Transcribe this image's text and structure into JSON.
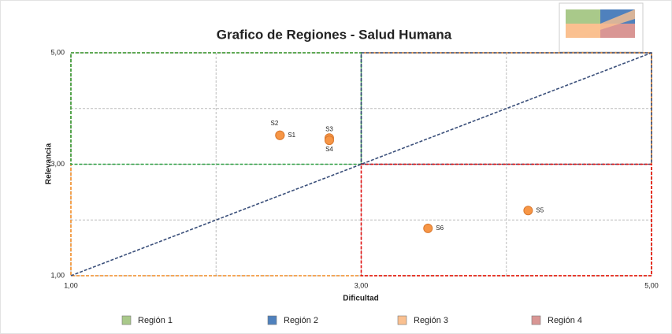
{
  "chart_data": {
    "type": "scatter",
    "title": "Grafico de Regiones - Salud Humana",
    "xlabel": "Dificultad",
    "ylabel": "Relevancia",
    "xlim": [
      1,
      5
    ],
    "ylim": [
      1,
      5
    ],
    "xticks": [
      {
        "value": 1,
        "label": "1,00"
      },
      {
        "value": 3,
        "label": "3,00"
      },
      {
        "value": 5,
        "label": "5,00"
      }
    ],
    "yticks": [
      {
        "value": 1,
        "label": "1,00"
      },
      {
        "value": 3,
        "label": "3,00"
      },
      {
        "value": 5,
        "label": "5,00"
      }
    ],
    "xminorticks": [
      2,
      4
    ],
    "yminorticks": [
      2,
      4
    ],
    "grid": true,
    "regions": [
      {
        "name": "Región 3",
        "color": "#fac090",
        "edge": "#f08a24",
        "x": [
          1,
          5
        ],
        "y": [
          1,
          5
        ]
      },
      {
        "name": "Región 1",
        "color": "#a9c98a",
        "edge": "#2ea043",
        "x": [
          1,
          3
        ],
        "y": [
          3,
          5
        ]
      },
      {
        "name": "Región 2",
        "color": "#4f81bd",
        "edge": "#2f4470",
        "x": [
          3,
          5
        ],
        "y": [
          3,
          5
        ]
      },
      {
        "name": "Región 4",
        "color": "#d99694",
        "edge": "#e01010",
        "x": [
          3,
          5
        ],
        "y": [
          1,
          3
        ]
      }
    ],
    "legend_order": [
      1,
      2,
      0,
      3
    ],
    "diagonal": {
      "color": "#3a4f7a",
      "x": [
        1,
        5
      ],
      "y": [
        1,
        5
      ]
    },
    "points": {
      "color": "#f79646",
      "labels": [
        "S1",
        "S2",
        "S3",
        "S4",
        "S5",
        "S6"
      ],
      "x": [
        2.44,
        2.44,
        2.78,
        2.78,
        4.15,
        3.46
      ],
      "y": [
        3.52,
        3.52,
        3.47,
        3.43,
        2.17,
        1.85
      ]
    }
  }
}
